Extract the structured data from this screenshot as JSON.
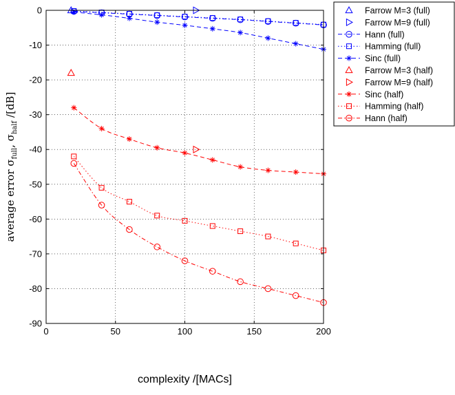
{
  "chart_data": {
    "type": "line",
    "xlabel": "complexity /[MACs]",
    "ylabel": "average error σ²full, σ²half /[dB]",
    "ylabel_parts": {
      "prefix": "average error σ",
      "sub1": "full",
      "sep": ", σ",
      "sub2": "half",
      "suffix": " /[dB]"
    },
    "xlim": [
      0,
      200
    ],
    "ylim": [
      -90,
      0
    ],
    "xticks": [
      0,
      50,
      100,
      150,
      200
    ],
    "yticks": [
      0,
      -10,
      -20,
      -30,
      -40,
      -50,
      -60,
      -70,
      -80,
      -90
    ],
    "grid": true,
    "legend_position": "outside-top-right",
    "colors": {
      "full": "#0000ff",
      "half": "#ff0000"
    },
    "series": [
      {
        "name": "Farrow M=3 (full)",
        "color": "#0000ff",
        "marker": "triangle-up",
        "line": "none",
        "x": [
          18
        ],
        "y": [
          0
        ]
      },
      {
        "name": "Farrow M=9 (full)",
        "color": "#0000ff",
        "marker": "triangle-right",
        "line": "none",
        "x": [
          108
        ],
        "y": [
          0
        ]
      },
      {
        "name": "Hann (full)",
        "color": "#0000ff",
        "marker": "circle",
        "line": "dashdot",
        "x": [
          20,
          40,
          60,
          80,
          100,
          120,
          140,
          160,
          180,
          200
        ],
        "y": [
          -0.3,
          -0.7,
          -1.1,
          -1.5,
          -1.9,
          -2.3,
          -2.7,
          -3.2,
          -3.7,
          -4.2
        ]
      },
      {
        "name": "Hamming (full)",
        "color": "#0000ff",
        "marker": "square",
        "line": "dotted",
        "x": [
          20,
          40,
          60,
          80,
          100,
          120,
          140,
          160,
          180,
          200
        ],
        "y": [
          -0.2,
          -0.6,
          -1.0,
          -1.4,
          -1.8,
          -2.2,
          -2.6,
          -3.1,
          -3.6,
          -4.1
        ]
      },
      {
        "name": "Sinc (full)",
        "color": "#0000ff",
        "marker": "asterisk",
        "line": "dashed",
        "x": [
          20,
          40,
          60,
          80,
          100,
          120,
          140,
          160,
          180,
          200
        ],
        "y": [
          -0.5,
          -1.3,
          -2.3,
          -3.4,
          -4.3,
          -5.3,
          -6.4,
          -8.0,
          -9.6,
          -11.2
        ]
      },
      {
        "name": "Farrow M=3 (half)",
        "color": "#ff0000",
        "marker": "triangle-up",
        "line": "none",
        "x": [
          18
        ],
        "y": [
          -18
        ]
      },
      {
        "name": "Farrow M=9 (half)",
        "color": "#ff0000",
        "marker": "triangle-right",
        "line": "none",
        "x": [
          108
        ],
        "y": [
          -40
        ]
      },
      {
        "name": "Sinc (half)",
        "color": "#ff0000",
        "marker": "asterisk",
        "line": "dashed",
        "x": [
          20,
          40,
          60,
          80,
          100,
          120,
          140,
          160,
          180,
          200
        ],
        "y": [
          -28,
          -34,
          -37,
          -39.5,
          -41,
          -43,
          -45,
          -46,
          -46.5,
          -47
        ]
      },
      {
        "name": "Hamming (half)",
        "color": "#ff0000",
        "marker": "square",
        "line": "dotted",
        "x": [
          20,
          40,
          60,
          80,
          100,
          120,
          140,
          160,
          180,
          200
        ],
        "y": [
          -42,
          -51,
          -55,
          -59,
          -60.5,
          -62,
          -63.5,
          -65,
          -67,
          -69
        ]
      },
      {
        "name": "Hann (half)",
        "color": "#ff0000",
        "marker": "circle",
        "line": "dashdot",
        "x": [
          20,
          40,
          60,
          80,
          100,
          120,
          140,
          160,
          180,
          200
        ],
        "y": [
          -44,
          -56,
          -63,
          -68,
          -72,
          -75,
          -78,
          -80,
          -82,
          -84
        ]
      }
    ]
  }
}
